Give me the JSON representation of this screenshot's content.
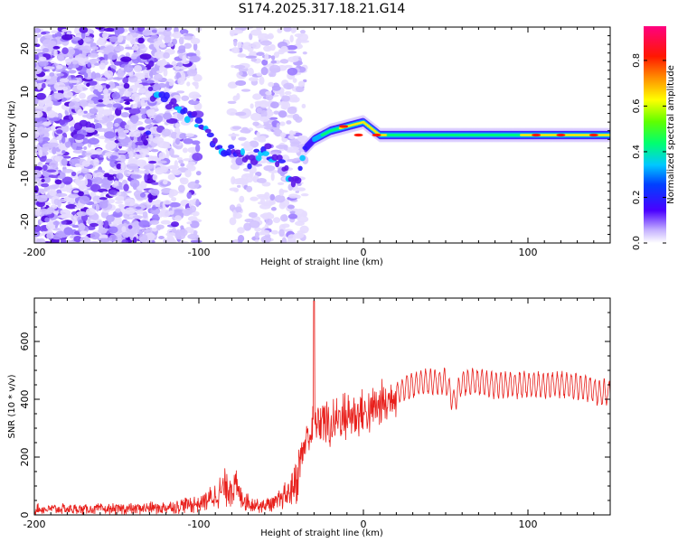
{
  "title": "S174.2025.317.18.21.G14",
  "colors": {
    "snr_line": "#e8201c",
    "spectrum_low": "#b9a6ff",
    "spectrum_mid": "#5a16e8",
    "background": "#ffffff"
  },
  "chart_data": [
    {
      "type": "heatmap",
      "name": "spectrogram",
      "xlabel": "Height of straight line (km)",
      "ylabel": "Frequency (Hz)",
      "xlim": [
        -200,
        150
      ],
      "ylim": [
        -25,
        25
      ],
      "xticks": [
        -200,
        -100,
        0,
        100
      ],
      "yticks": [
        -20,
        -10,
        0,
        10,
        20
      ],
      "ridge": {
        "description_points_x": [
          -130,
          -120,
          -110,
          -100,
          -90,
          -80,
          -70,
          -60,
          -50,
          -40,
          -35,
          -30,
          -20,
          -10,
          0,
          10,
          20,
          50,
          100,
          150
        ],
        "description_points_y": [
          10,
          8,
          5,
          3,
          -2,
          -4,
          -6,
          -3,
          -6,
          -12,
          -3,
          -1,
          1,
          2,
          3,
          0,
          0,
          0,
          0,
          0
        ]
      },
      "colorbar": {
        "label": "Normalized spectral amplitude",
        "range": [
          0,
          0.95
        ],
        "ticks": [
          "0.0",
          "0.2",
          "0.4",
          "0.6",
          "0.8"
        ]
      }
    },
    {
      "type": "line",
      "name": "snr",
      "xlabel": "Height of straight line (km)",
      "ylabel": "SNR (10 * v/v)",
      "xlim": [
        -200,
        150
      ],
      "ylim": [
        0,
        750
      ],
      "xticks": [
        -200,
        -100,
        0,
        100
      ],
      "yticks": [
        0,
        200,
        400,
        600
      ],
      "series": [
        {
          "name": "SNR",
          "x": [
            -200,
            -180,
            -160,
            -140,
            -120,
            -100,
            -90,
            -85,
            -80,
            -75,
            -70,
            -60,
            -50,
            -45,
            -40,
            -37,
            -35,
            -30,
            -25,
            -20,
            -15,
            -10,
            -5,
            0,
            5,
            10,
            15,
            20,
            25,
            30,
            40,
            50,
            55,
            60,
            70,
            80,
            90,
            100,
            110,
            120,
            130,
            140,
            150
          ],
          "values": [
            20,
            20,
            20,
            22,
            25,
            40,
            65,
            90,
            110,
            70,
            45,
            30,
            50,
            80,
            140,
            220,
            260,
            300,
            340,
            300,
            340,
            340,
            350,
            350,
            360,
            380,
            390,
            420,
            440,
            450,
            460,
            460,
            390,
            460,
            460,
            450,
            450,
            450,
            450,
            450,
            445,
            430,
            420
          ],
          "spike": {
            "x": -30,
            "y": 740
          }
        }
      ]
    }
  ]
}
